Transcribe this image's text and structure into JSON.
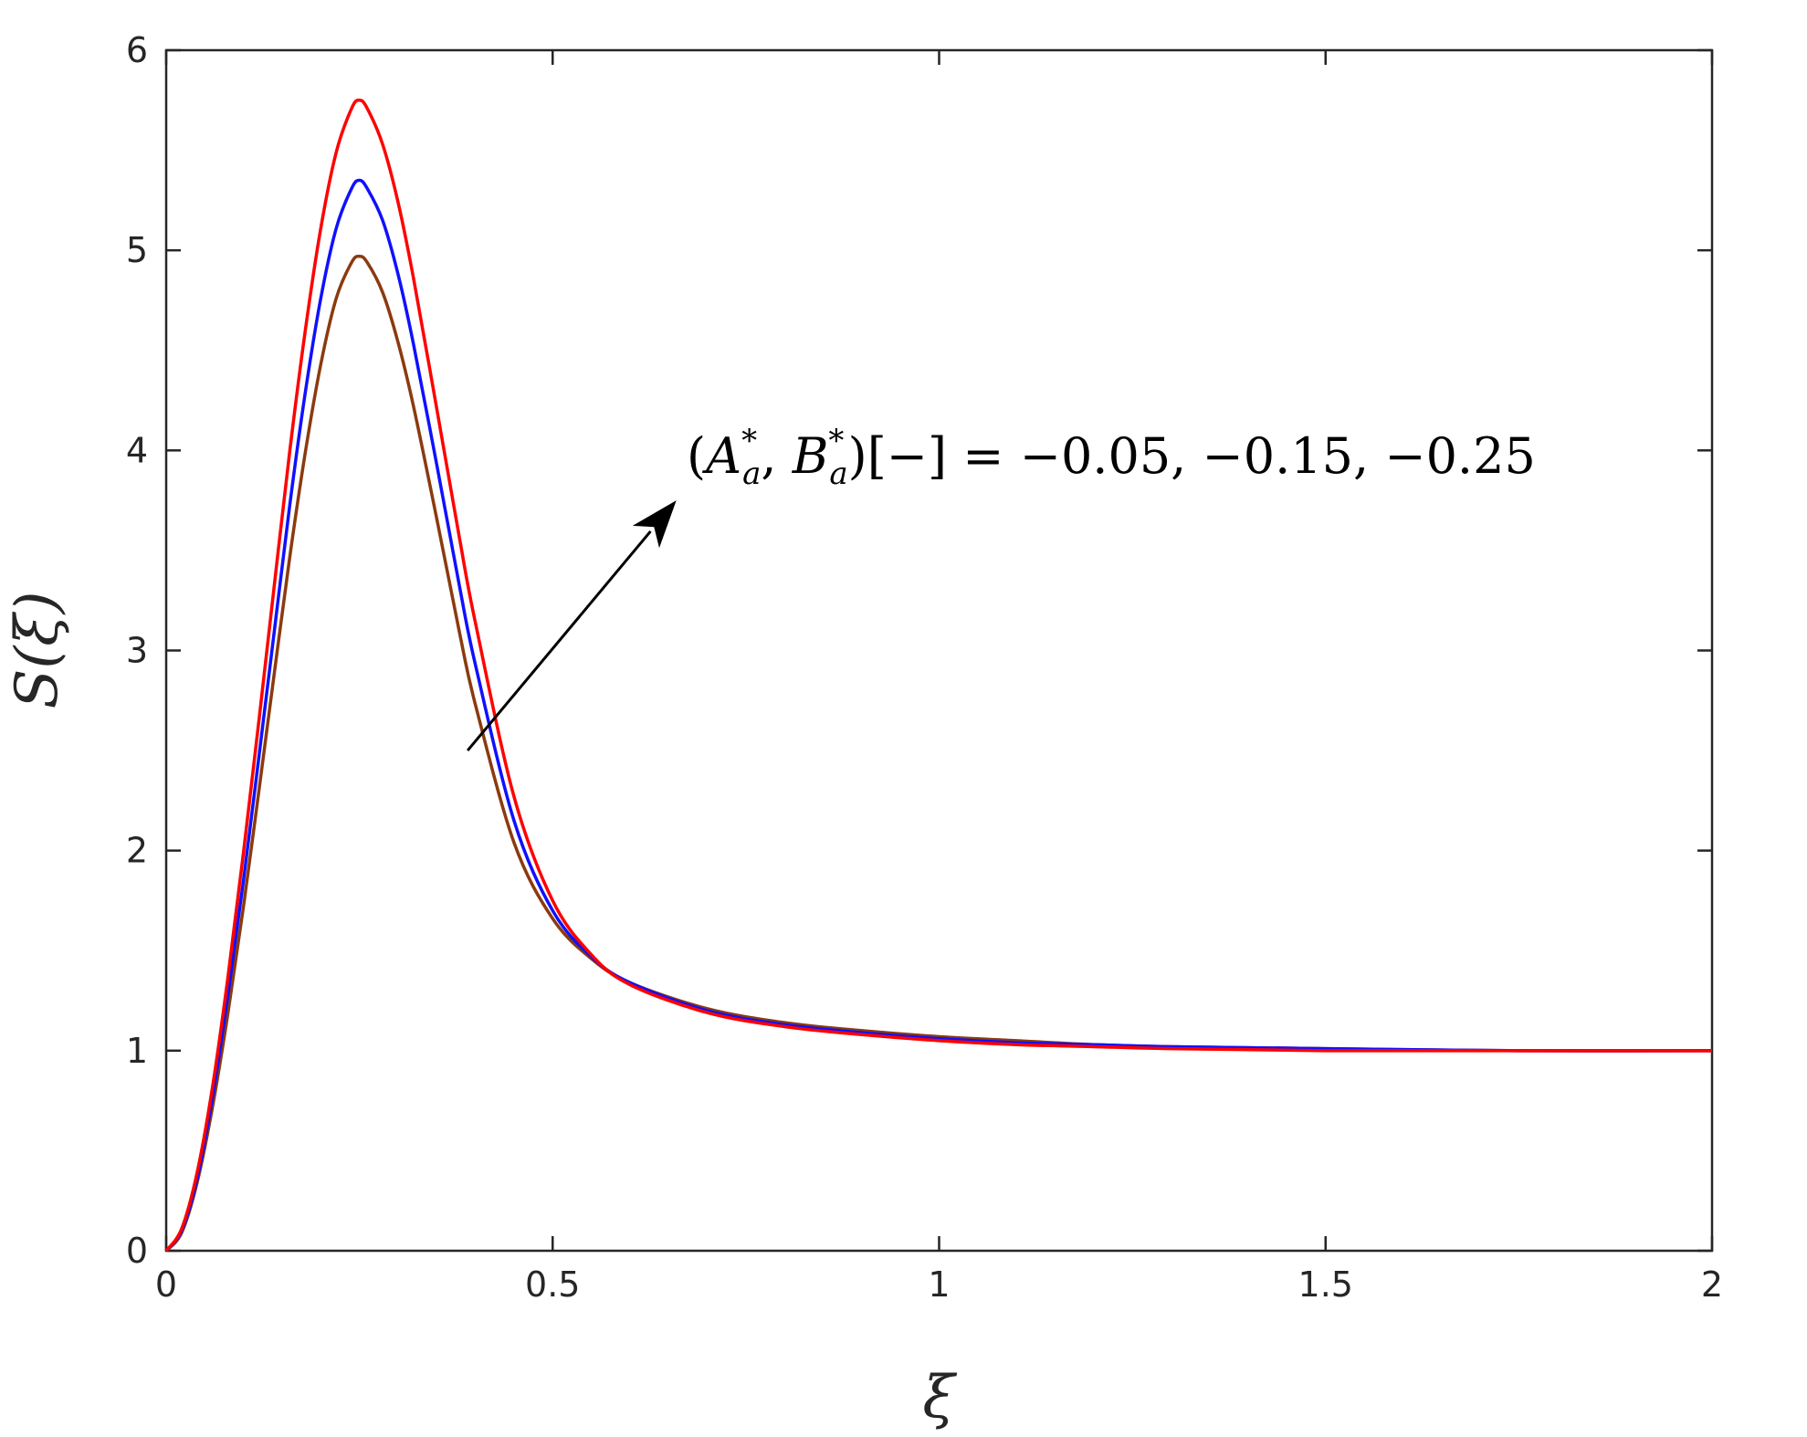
{
  "chart_data": {
    "type": "line",
    "title": "",
    "xlabel": "ξ",
    "ylabel": "S(ξ)",
    "xlim": [
      0,
      2
    ],
    "ylim": [
      0,
      6
    ],
    "xticks": [
      0,
      0.5,
      1,
      1.5,
      2
    ],
    "xtick_labels": [
      "0",
      "0.5",
      "1",
      "1.5",
      "2"
    ],
    "yticks": [
      0,
      1,
      2,
      3,
      4,
      5,
      6
    ],
    "ytick_labels": [
      "0",
      "1",
      "2",
      "3",
      "4",
      "5",
      "6"
    ],
    "grid": false,
    "legend": "none",
    "series": [
      {
        "color": "#8B3A0F",
        "x": [
          0,
          0.02,
          0.04,
          0.06,
          0.08,
          0.1,
          0.12,
          0.14,
          0.16,
          0.18,
          0.2,
          0.22,
          0.24,
          0.25,
          0.26,
          0.28,
          0.3,
          0.32,
          0.35,
          0.38,
          0.4,
          0.45,
          0.5,
          0.55,
          0.6,
          0.7,
          0.8,
          0.9,
          1.0,
          1.1,
          1.2,
          1.3,
          1.5,
          1.75,
          2.0
        ],
        "y": [
          0,
          0.09,
          0.34,
          0.72,
          1.19,
          1.72,
          2.3,
          2.89,
          3.47,
          3.99,
          4.43,
          4.76,
          4.94,
          4.97,
          4.94,
          4.79,
          4.54,
          4.22,
          3.66,
          3.08,
          2.73,
          2.04,
          1.66,
          1.46,
          1.34,
          1.21,
          1.14,
          1.1,
          1.07,
          1.05,
          1.03,
          1.02,
          1.01,
          1.0,
          1.0
        ]
      },
      {
        "color": "#1010FF",
        "x": [
          0,
          0.02,
          0.04,
          0.06,
          0.08,
          0.1,
          0.12,
          0.14,
          0.16,
          0.18,
          0.2,
          0.22,
          0.24,
          0.25,
          0.26,
          0.28,
          0.3,
          0.32,
          0.35,
          0.38,
          0.4,
          0.45,
          0.5,
          0.55,
          0.6,
          0.7,
          0.8,
          0.9,
          1.0,
          1.1,
          1.2,
          1.3,
          1.5,
          1.75,
          2.0
        ],
        "y": [
          0,
          0.1,
          0.36,
          0.77,
          1.28,
          1.85,
          2.47,
          3.1,
          3.73,
          4.29,
          4.76,
          5.11,
          5.31,
          5.35,
          5.31,
          5.15,
          4.88,
          4.53,
          3.93,
          3.31,
          2.93,
          2.15,
          1.7,
          1.47,
          1.34,
          1.2,
          1.13,
          1.09,
          1.06,
          1.04,
          1.03,
          1.02,
          1.01,
          1.0,
          1.0
        ]
      },
      {
        "color": "#FF0000",
        "x": [
          0,
          0.02,
          0.04,
          0.06,
          0.08,
          0.1,
          0.12,
          0.14,
          0.16,
          0.18,
          0.2,
          0.22,
          0.24,
          0.25,
          0.26,
          0.28,
          0.3,
          0.32,
          0.35,
          0.38,
          0.4,
          0.45,
          0.5,
          0.55,
          0.6,
          0.7,
          0.8,
          0.9,
          1.0,
          1.1,
          1.2,
          1.3,
          1.5,
          1.75,
          2.0
        ],
        "y": [
          0,
          0.11,
          0.39,
          0.82,
          1.37,
          1.99,
          2.65,
          3.33,
          4.0,
          4.6,
          5.11,
          5.49,
          5.71,
          5.75,
          5.71,
          5.53,
          5.24,
          4.86,
          4.21,
          3.55,
          3.14,
          2.27,
          1.75,
          1.48,
          1.33,
          1.19,
          1.12,
          1.08,
          1.05,
          1.03,
          1.02,
          1.01,
          1.0,
          1.0,
          1.0
        ]
      }
    ],
    "annotation": {
      "text": "(A*a, B*a)[−] = −0.05, −0.15, −0.25",
      "prefix": "(",
      "a_main": "A",
      "a_sup": "*",
      "a_sub": "a",
      "sep": ", ",
      "b_main": "B",
      "b_sup": "*",
      "b_sub": "a",
      "suffix": ")[−] = −0.05, −0.15, −0.25"
    },
    "arrow": {
      "from": [
        0.39,
        2.5
      ],
      "to": [
        0.66,
        3.75
      ]
    }
  }
}
